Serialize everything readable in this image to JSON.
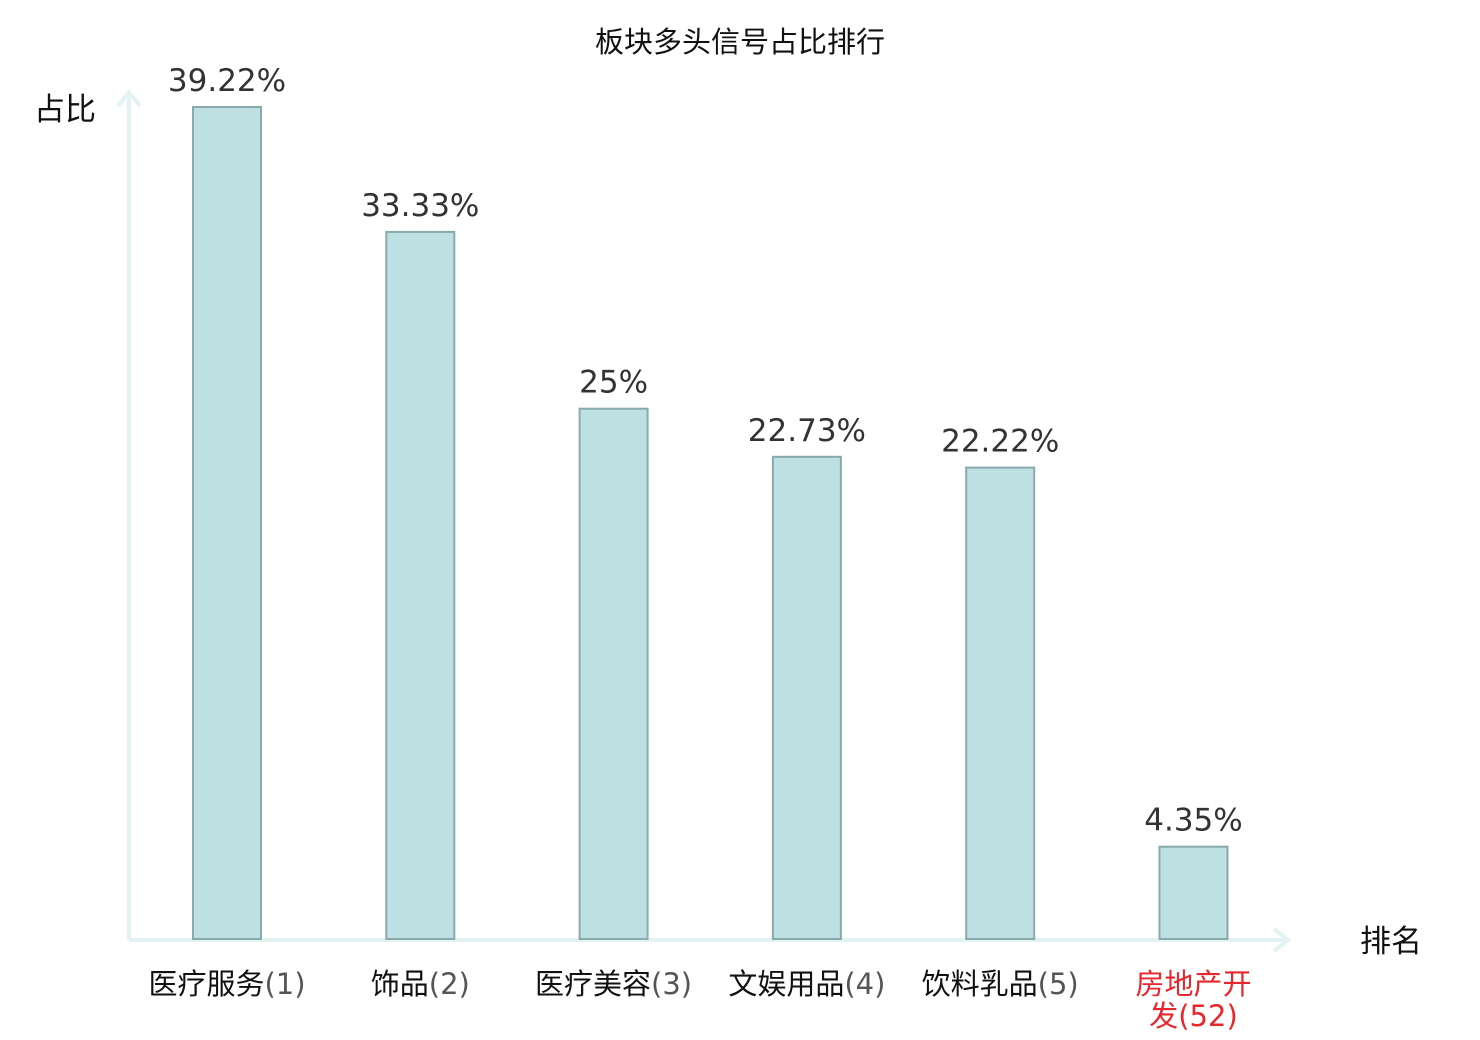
{
  "chart_data": {
    "type": "bar",
    "title": "板块多头信号占比排行",
    "ylabel": "占比",
    "xlabel": "排名",
    "categories": [
      {
        "name": "医疗服务",
        "rank": "(1)",
        "highlight": false
      },
      {
        "name": "饰品",
        "rank": "(2)",
        "highlight": false
      },
      {
        "name": "医疗美容",
        "rank": "(3)",
        "highlight": false
      },
      {
        "name": "文娱用品",
        "rank": "(4)",
        "highlight": false
      },
      {
        "name": "饮料乳品",
        "rank": "(5)",
        "highlight": false
      },
      {
        "name": "房地产开发",
        "rank": "(52)",
        "highlight": true
      }
    ],
    "values": [
      39.22,
      33.33,
      25,
      22.73,
      22.22,
      4.35
    ],
    "value_labels": [
      "39.22%",
      "33.33%",
      "25%",
      "22.73%",
      "22.22%",
      "4.35%"
    ],
    "ylim": [
      0,
      40
    ],
    "grid": false,
    "colors": {
      "bar_fill": "#bde0e3",
      "bar_stroke": "#8aa9ab",
      "axis": "#e3f3f3",
      "highlight": "#e8262d"
    }
  }
}
